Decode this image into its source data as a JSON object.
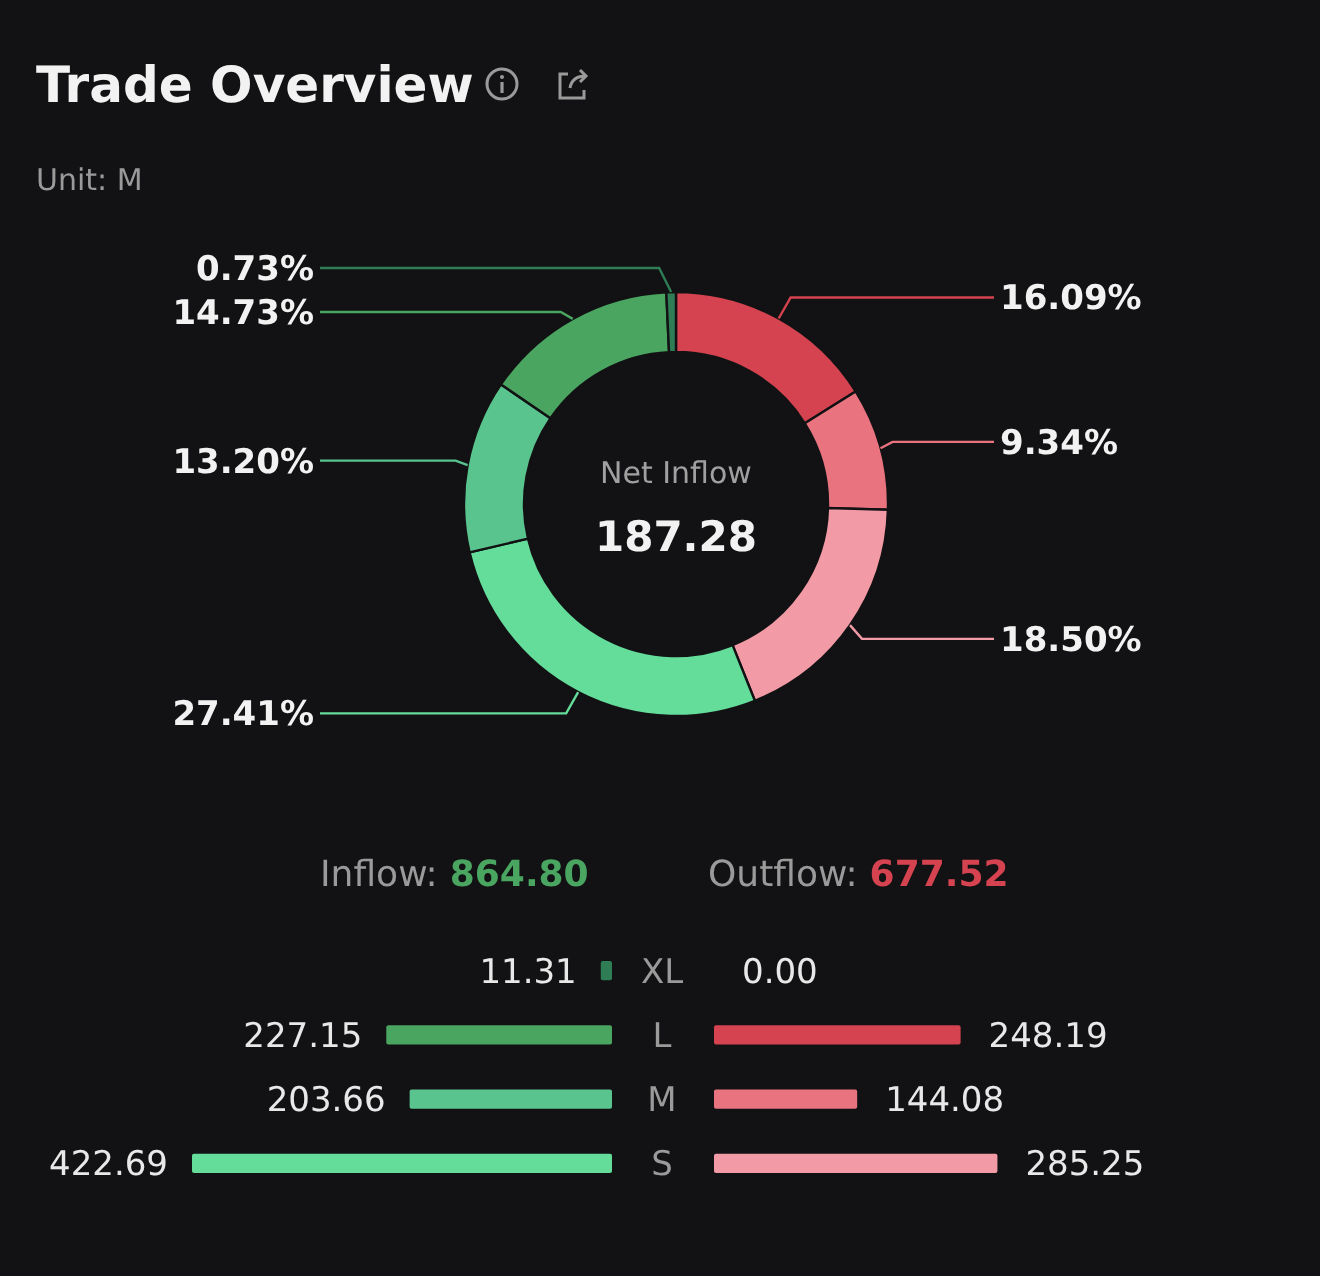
{
  "chart_data": [
    {
      "type": "donut",
      "title": "Trade Overview",
      "subtitle": "Unit: M",
      "categories": [
        null,
        null,
        null,
        null,
        null,
        null,
        null
      ],
      "values": [
        16.09,
        9.34,
        18.5,
        27.41,
        13.2,
        14.73,
        0.73
      ],
      "value_labels": [
        "16.09%",
        "9.34%",
        "18.50%",
        "27.41%",
        "13.20%",
        "14.73%",
        "0.73%"
      ],
      "colors": [
        "#d4434f",
        "#e97480",
        "#f29aa5",
        "#64dc9a",
        "#5ac48e",
        "#4aa561",
        "#2e7d55"
      ],
      "annotations": [
        "Net Inflow",
        "187.28"
      ]
    },
    {
      "type": "bar",
      "orientation": "horizontal",
      "title": "Inflow:",
      "annotations": [
        "864.80"
      ],
      "categories": [
        "XL",
        "L",
        "M",
        "S"
      ],
      "values": [
        11.31,
        227.15,
        203.66,
        422.69
      ],
      "value_labels": [
        "11.31",
        "227.15",
        "203.66",
        "422.69"
      ],
      "colors": [
        "#2e7d55",
        "#4aa561",
        "#5ac48e",
        "#64dc9a"
      ]
    },
    {
      "type": "bar",
      "orientation": "horizontal",
      "title": "Outflow:",
      "annotations": [
        "677.52"
      ],
      "categories": [
        null,
        null,
        null,
        null
      ],
      "values": [
        0.0,
        248.19,
        144.08,
        285.25
      ],
      "value_labels": [
        "0.00",
        "248.19",
        "144.08",
        "285.25"
      ],
      "colors": [
        "#d4434f",
        "#d4434f",
        "#e97480",
        "#f29aa5"
      ]
    }
  ]
}
